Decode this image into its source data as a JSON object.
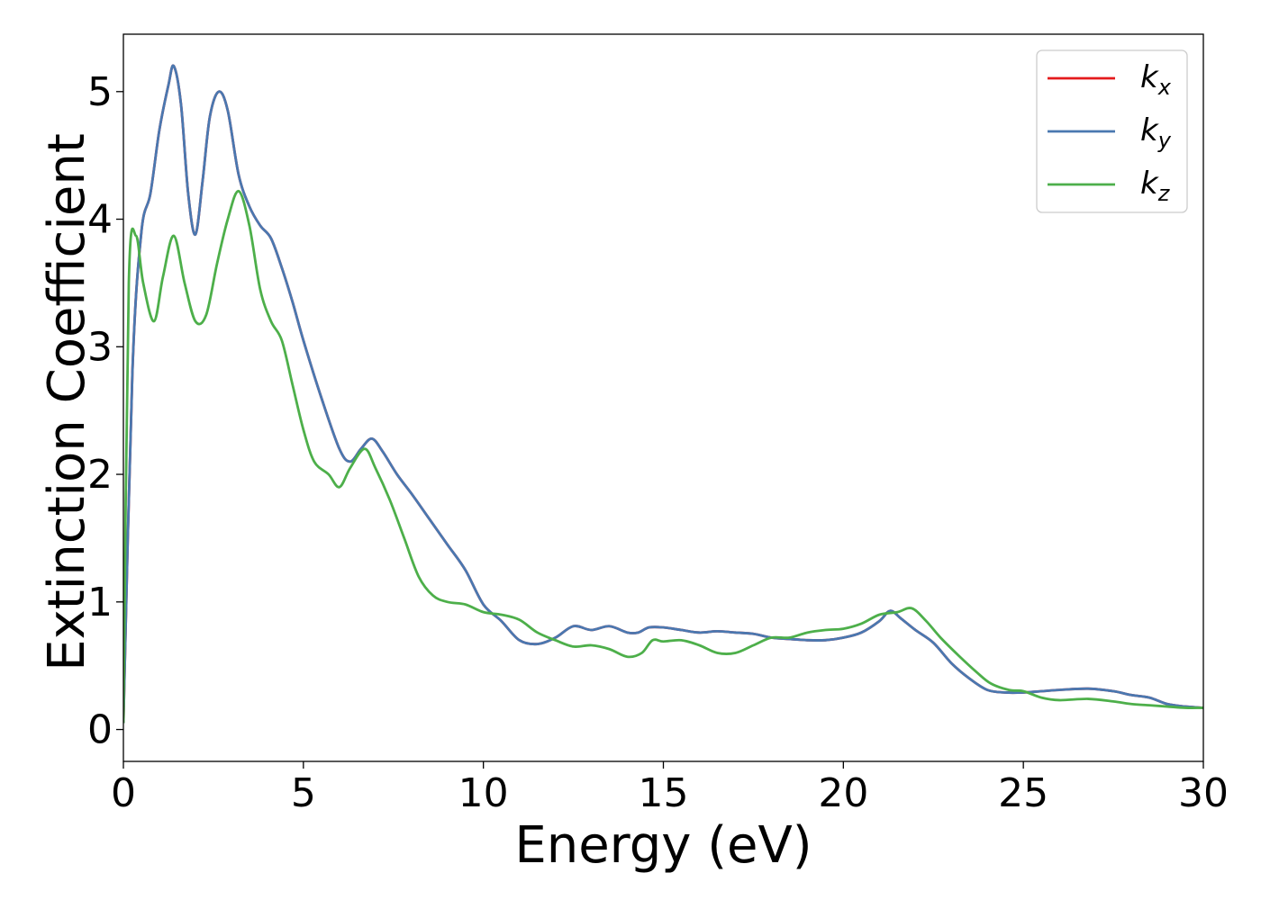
{
  "chart_data": {
    "type": "line",
    "xlabel": "Energy (eV)",
    "ylabel": "Extinction Coefficient",
    "xlim": [
      0,
      30
    ],
    "ylim": [
      -0.25,
      5.45
    ],
    "x_ticks": [
      "0",
      "5",
      "10",
      "15",
      "20",
      "25",
      "30"
    ],
    "y_ticks": [
      "0",
      "1",
      "2",
      "3",
      "4",
      "5"
    ],
    "grid": false,
    "legend_position": "top-right",
    "series": [
      {
        "name": "k_x",
        "legend_base": "k",
        "legend_sub": "x",
        "color": "#e41a1c",
        "x": [
          0,
          0.25,
          0.5,
          0.75,
          1.0,
          1.25,
          1.4,
          1.6,
          1.8,
          2.0,
          2.2,
          2.4,
          2.65,
          2.9,
          3.2,
          3.5,
          3.8,
          4.1,
          4.4,
          4.7,
          5.0,
          5.5,
          6.0,
          6.3,
          6.6,
          6.9,
          7.2,
          7.6,
          8.0,
          8.5,
          9.0,
          9.5,
          10.0,
          10.5,
          11.0,
          11.5,
          12.0,
          12.5,
          13.0,
          13.5,
          14.0,
          14.3,
          14.6,
          15.0,
          15.5,
          16.0,
          16.5,
          17.0,
          17.5,
          18.0,
          18.5,
          19.0,
          19.5,
          20.0,
          20.5,
          21.0,
          21.3,
          21.6,
          22.0,
          22.5,
          23.0,
          23.5,
          24.0,
          24.5,
          25.0,
          25.5,
          26.0,
          26.8,
          27.5,
          28.0,
          28.5,
          29.0,
          29.5,
          30.0
        ],
        "values": [
          0.05,
          2.8,
          3.9,
          4.2,
          4.7,
          5.05,
          5.2,
          4.9,
          4.2,
          3.88,
          4.3,
          4.8,
          5.0,
          4.85,
          4.35,
          4.1,
          3.95,
          3.85,
          3.62,
          3.35,
          3.05,
          2.6,
          2.2,
          2.1,
          2.2,
          2.28,
          2.18,
          2.0,
          1.85,
          1.65,
          1.45,
          1.25,
          0.98,
          0.85,
          0.7,
          0.67,
          0.72,
          0.81,
          0.78,
          0.81,
          0.76,
          0.76,
          0.8,
          0.8,
          0.78,
          0.76,
          0.77,
          0.76,
          0.75,
          0.72,
          0.71,
          0.7,
          0.7,
          0.72,
          0.76,
          0.85,
          0.93,
          0.87,
          0.78,
          0.68,
          0.52,
          0.4,
          0.31,
          0.29,
          0.29,
          0.3,
          0.31,
          0.32,
          0.3,
          0.27,
          0.25,
          0.2,
          0.18,
          0.17
        ]
      },
      {
        "name": "k_y",
        "legend_base": "k",
        "legend_sub": "y",
        "color": "#4a78b0",
        "x": [
          0,
          0.25,
          0.5,
          0.75,
          1.0,
          1.25,
          1.4,
          1.6,
          1.8,
          2.0,
          2.2,
          2.4,
          2.65,
          2.9,
          3.2,
          3.5,
          3.8,
          4.1,
          4.4,
          4.7,
          5.0,
          5.5,
          6.0,
          6.3,
          6.6,
          6.9,
          7.2,
          7.6,
          8.0,
          8.5,
          9.0,
          9.5,
          10.0,
          10.5,
          11.0,
          11.5,
          12.0,
          12.5,
          13.0,
          13.5,
          14.0,
          14.3,
          14.6,
          15.0,
          15.5,
          16.0,
          16.5,
          17.0,
          17.5,
          18.0,
          18.5,
          19.0,
          19.5,
          20.0,
          20.5,
          21.0,
          21.3,
          21.6,
          22.0,
          22.5,
          23.0,
          23.5,
          24.0,
          24.5,
          25.0,
          25.5,
          26.0,
          26.8,
          27.5,
          28.0,
          28.5,
          29.0,
          29.5,
          30.0
        ],
        "values": [
          0.05,
          2.8,
          3.9,
          4.2,
          4.7,
          5.05,
          5.2,
          4.9,
          4.2,
          3.88,
          4.3,
          4.8,
          5.0,
          4.85,
          4.35,
          4.1,
          3.95,
          3.85,
          3.62,
          3.35,
          3.05,
          2.6,
          2.2,
          2.1,
          2.2,
          2.28,
          2.18,
          2.0,
          1.85,
          1.65,
          1.45,
          1.25,
          0.98,
          0.85,
          0.7,
          0.67,
          0.72,
          0.81,
          0.78,
          0.81,
          0.76,
          0.76,
          0.8,
          0.8,
          0.78,
          0.76,
          0.77,
          0.76,
          0.75,
          0.72,
          0.71,
          0.7,
          0.7,
          0.72,
          0.76,
          0.85,
          0.93,
          0.87,
          0.78,
          0.68,
          0.52,
          0.4,
          0.31,
          0.29,
          0.29,
          0.3,
          0.31,
          0.32,
          0.3,
          0.27,
          0.25,
          0.2,
          0.18,
          0.17
        ]
      },
      {
        "name": "k_z",
        "legend_base": "k",
        "legend_sub": "z",
        "color": "#4daf4a",
        "x": [
          0,
          0.15,
          0.35,
          0.55,
          0.85,
          1.1,
          1.4,
          1.7,
          2.0,
          2.3,
          2.6,
          2.9,
          3.2,
          3.5,
          3.8,
          4.1,
          4.4,
          4.7,
          5.0,
          5.3,
          5.7,
          6.0,
          6.3,
          6.7,
          7.0,
          7.4,
          7.8,
          8.2,
          8.6,
          9.0,
          9.5,
          10.0,
          10.5,
          11.0,
          11.5,
          12.0,
          12.5,
          13.0,
          13.5,
          14.0,
          14.4,
          14.7,
          15.0,
          15.5,
          16.0,
          16.5,
          17.0,
          17.5,
          18.0,
          18.5,
          19.0,
          19.5,
          20.0,
          20.5,
          21.0,
          21.5,
          21.9,
          22.3,
          22.7,
          23.2,
          23.7,
          24.1,
          24.6,
          25.0,
          25.5,
          26.0,
          26.8,
          27.5,
          28.0,
          28.5,
          29.0,
          29.5,
          30.0
        ],
        "values": [
          0.05,
          3.5,
          3.87,
          3.5,
          3.2,
          3.55,
          3.87,
          3.5,
          3.2,
          3.25,
          3.65,
          4.0,
          4.22,
          3.95,
          3.45,
          3.2,
          3.05,
          2.7,
          2.35,
          2.1,
          2.0,
          1.9,
          2.05,
          2.2,
          2.05,
          1.8,
          1.5,
          1.2,
          1.05,
          1.0,
          0.98,
          0.92,
          0.9,
          0.86,
          0.76,
          0.7,
          0.65,
          0.66,
          0.63,
          0.57,
          0.6,
          0.7,
          0.69,
          0.7,
          0.66,
          0.6,
          0.6,
          0.66,
          0.72,
          0.72,
          0.76,
          0.78,
          0.79,
          0.83,
          0.9,
          0.92,
          0.95,
          0.85,
          0.72,
          0.58,
          0.45,
          0.36,
          0.31,
          0.3,
          0.25,
          0.23,
          0.24,
          0.22,
          0.2,
          0.19,
          0.18,
          0.17,
          0.17
        ]
      }
    ]
  }
}
